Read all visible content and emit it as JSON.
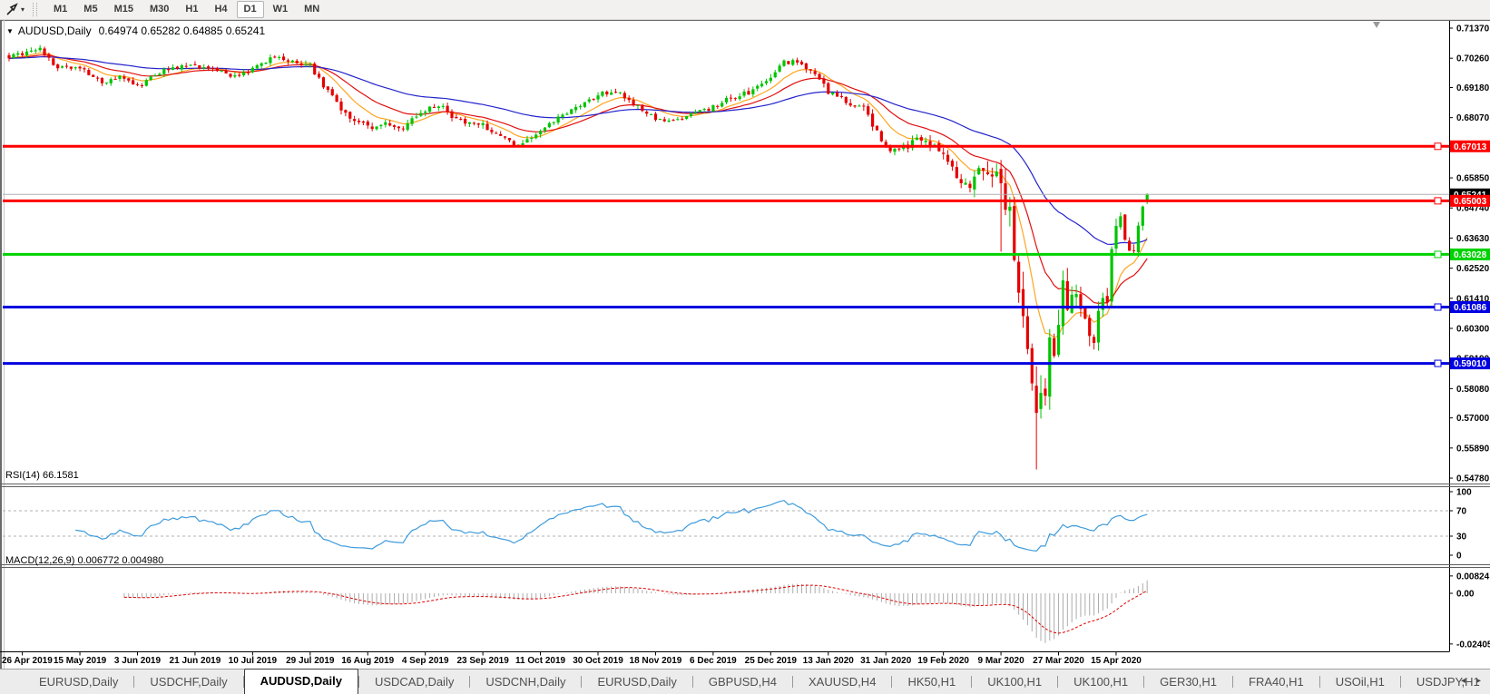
{
  "toolbar": {
    "timeframes": [
      "M1",
      "M5",
      "M15",
      "M30",
      "H1",
      "H4",
      "D1",
      "W1",
      "MN"
    ],
    "active_timeframe": "D1",
    "dropdown_glyph": "▾"
  },
  "chart": {
    "title": {
      "dropdown_glyph": "▼",
      "symbol": "AUDUSD,Daily",
      "ohlc": "0.64974 0.65282 0.64885 0.65241"
    }
  },
  "chart_data": {
    "type": "candlestick",
    "symbol": "AUDUSD",
    "timeframe": "Daily",
    "colors": {
      "candle_up": "#00c400",
      "candle_down": "#e60000",
      "current_price_line": "#b2b2b2",
      "current_price_label_bg": "#000000",
      "rsi_line": "#3e9bdc",
      "macd_histogram": "#ababab",
      "macd_signal": "#e00000",
      "axis_text": "#000000"
    },
    "y_axis_ticks": [
      "0.71370",
      "0.70260",
      "0.69180",
      "0.68070",
      "0.66960",
      "0.65850",
      "0.64740",
      "0.63630",
      "0.62520",
      "0.61410",
      "0.60300",
      "0.59190",
      "0.58080",
      "0.57000",
      "0.55890",
      "0.54780"
    ],
    "x_axis_dates": [
      "26 Apr 2019",
      "15 May 2019",
      "3 Jun 2019",
      "21 Jun 2019",
      "10 Jul 2019",
      "29 Jul 2019",
      "16 Aug 2019",
      "4 Sep 2019",
      "23 Sep 2019",
      "11 Oct 2019",
      "30 Oct 2019",
      "18 Nov 2019",
      "6 Dec 2019",
      "25 Dec 2019",
      "13 Jan 2020",
      "31 Jan 2020",
      "19 Feb 2020",
      "9 Mar 2020",
      "27 Mar 2020",
      "15 Apr 2020"
    ],
    "levels": [
      {
        "label": "0.67013",
        "value": 0.67013,
        "color": "#ff0000"
      },
      {
        "label": "0.65003",
        "value": 0.65003,
        "color": "#ff0000"
      },
      {
        "label": "0.63028",
        "value": 0.63028,
        "color": "#00d200"
      },
      {
        "label": "0.61086",
        "value": 0.61086,
        "color": "#0000e0"
      },
      {
        "label": "0.59010",
        "value": 0.5901,
        "color": "#0000e0"
      }
    ],
    "current_price": {
      "label": "0.65241",
      "value": 0.65241
    },
    "moving_averages": [
      {
        "period": 10,
        "color": "#ffa520"
      },
      {
        "period": 21,
        "color": "#e01010"
      },
      {
        "period": 55,
        "color": "#2424cc"
      }
    ],
    "rsi": {
      "label": "RSI(14) 66.1581",
      "period": 14,
      "axis_ticks": [
        "100",
        "70",
        "30",
        "0"
      ],
      "guide_levels": [
        70,
        30
      ]
    },
    "macd": {
      "label": "MACD(12,26,9) 0.006772 0.004980",
      "fast": 12,
      "slow": 26,
      "signal": 9,
      "axis_ticks": [
        {
          "label": "0.00824",
          "value": 0.00824
        },
        {
          "label": "0.00",
          "value": 0.0
        },
        {
          "label": "-0.024055",
          "value": -0.024055
        }
      ]
    },
    "num_candles": 258,
    "path_keypoints": [
      [
        0,
        0.703
      ],
      [
        3,
        0.7042
      ],
      [
        7,
        0.7058
      ],
      [
        11,
        0.6992
      ],
      [
        16,
        0.6986
      ],
      [
        21,
        0.6938
      ],
      [
        25,
        0.6958
      ],
      [
        29,
        0.6922
      ],
      [
        34,
        0.6976
      ],
      [
        42,
        0.7
      ],
      [
        47,
        0.6982
      ],
      [
        51,
        0.6956
      ],
      [
        55,
        0.699
      ],
      [
        60,
        0.7034
      ],
      [
        63,
        0.7021
      ],
      [
        68,
        0.6996
      ],
      [
        72,
        0.6902
      ],
      [
        76,
        0.6822
      ],
      [
        81,
        0.6768
      ],
      [
        85,
        0.6792
      ],
      [
        88,
        0.6757
      ],
      [
        94,
        0.684
      ],
      [
        97,
        0.6856
      ],
      [
        101,
        0.6801
      ],
      [
        107,
        0.6776
      ],
      [
        111,
        0.6736
      ],
      [
        115,
        0.6701
      ],
      [
        120,
        0.6766
      ],
      [
        125,
        0.6821
      ],
      [
        129,
        0.6851
      ],
      [
        133,
        0.6891
      ],
      [
        137,
        0.6906
      ],
      [
        141,
        0.6856
      ],
      [
        146,
        0.6801
      ],
      [
        150,
        0.6791
      ],
      [
        155,
        0.6821
      ],
      [
        159,
        0.6846
      ],
      [
        163,
        0.6881
      ],
      [
        168,
        0.6906
      ],
      [
        172,
        0.6946
      ],
      [
        175,
        0.7016
      ],
      [
        178,
        0.7006
      ],
      [
        182,
        0.6961
      ],
      [
        185,
        0.6901
      ],
      [
        189,
        0.6871
      ],
      [
        193,
        0.6841
      ],
      [
        198,
        0.6691
      ],
      [
        202,
        0.6701
      ],
      [
        206,
        0.6726
      ],
      [
        211,
        0.6681
      ],
      [
        214,
        0.6601
      ],
      [
        217,
        0.6556
      ],
      [
        220,
        0.6626
      ],
      [
        224,
        0.6582
      ],
      [
        225,
        0.65
      ],
      [
        226,
        0.649
      ],
      [
        227,
        0.629
      ],
      [
        228,
        0.619
      ],
      [
        229,
        0.611
      ],
      [
        230,
        0.599
      ],
      [
        231,
        0.578
      ],
      [
        232,
        0.574
      ],
      [
        233,
        0.58
      ],
      [
        234,
        0.582
      ],
      [
        235,
        0.596
      ],
      [
        236,
        0.595
      ],
      [
        237,
        0.606
      ],
      [
        238,
        0.617
      ],
      [
        239,
        0.613
      ],
      [
        241,
        0.614
      ],
      [
        243,
        0.606
      ],
      [
        245,
        0.599
      ],
      [
        246,
        0.609
      ],
      [
        247,
        0.616
      ],
      [
        248,
        0.612
      ],
      [
        249,
        0.633
      ],
      [
        250,
        0.639
      ],
      [
        251,
        0.644
      ],
      [
        252,
        0.636
      ],
      [
        253,
        0.631
      ],
      [
        254,
        0.633
      ],
      [
        255,
        0.642
      ],
      [
        256,
        0.647
      ],
      [
        257,
        0.6524
      ]
    ],
    "vol_keypoints": [
      [
        0,
        0.002
      ],
      [
        60,
        0.002
      ],
      [
        70,
        0.0028
      ],
      [
        90,
        0.0025
      ],
      [
        150,
        0.0018
      ],
      [
        195,
        0.0028
      ],
      [
        211,
        0.004
      ],
      [
        218,
        0.0055
      ],
      [
        224,
        0.0085
      ],
      [
        228,
        0.011
      ],
      [
        232,
        0.013
      ],
      [
        236,
        0.01
      ],
      [
        240,
        0.008
      ],
      [
        246,
        0.006
      ],
      [
        252,
        0.0045
      ],
      [
        257,
        0.0035
      ]
    ],
    "candle_overrides": {
      "224": {
        "low": 0.6313
      },
      "232": {
        "low": 0.551
      },
      "257": {
        "open": 0.64974,
        "high": 0.65282,
        "low": 0.64885,
        "close": 0.65241
      }
    }
  },
  "tab_bar": {
    "tabs": [
      "EURUSD,Daily",
      "USDCHF,Daily",
      "AUDUSD,Daily",
      "USDCAD,Daily",
      "USDCNH,Daily",
      "EURUSD,Daily",
      "GBPUSD,H4",
      "XAUUSD,H4",
      "HK50,H1",
      "UK100,H1",
      "UK100,H1",
      "GER30,H1",
      "FRA40,H1",
      "USOil,H1",
      "USDJPY,H1"
    ],
    "active_index": 2,
    "scroll_left_glyph": "◂",
    "scroll_right_glyph": "▸"
  }
}
